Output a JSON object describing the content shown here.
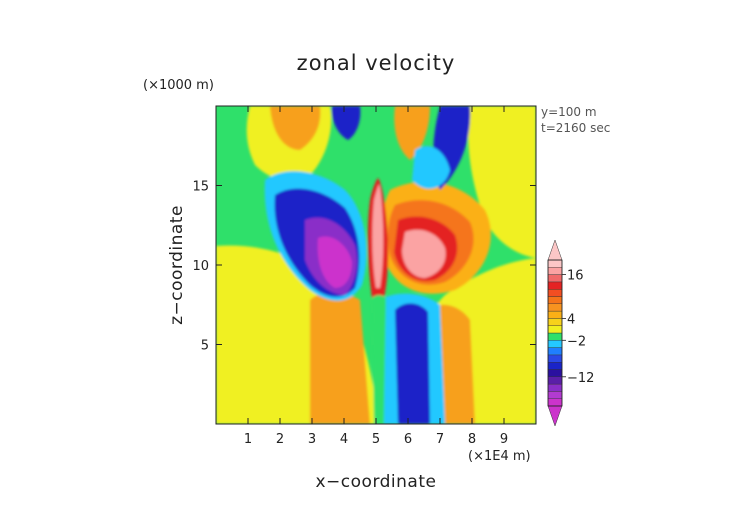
{
  "chart_data": {
    "type": "heatmap",
    "title": "zonal velocity",
    "xlabel": "x−coordinate",
    "ylabel": "z−coordinate",
    "x_unit": "(×1E4 m)",
    "y_unit": "(×1000 m)",
    "annotations": [
      "y=100 m",
      "t=2160 sec"
    ],
    "xlim": [
      0,
      10
    ],
    "ylim": [
      0,
      20
    ],
    "x_ticks": [
      "1",
      "2",
      "3",
      "4",
      "5",
      "6",
      "7",
      "8",
      "9"
    ],
    "x_tick_values": [
      1,
      2,
      3,
      4,
      5,
      6,
      7,
      8,
      9
    ],
    "y_ticks": [
      "5",
      "10",
      "15"
    ],
    "y_tick_values": [
      5,
      10,
      15
    ],
    "colorbar": {
      "labels": [
        "16",
        "4",
        "−2",
        "−12"
      ],
      "label_values": [
        16,
        4,
        -2,
        -12
      ],
      "levels": [
        -20,
        -18,
        -16,
        -14,
        -12,
        -10,
        -8,
        -6,
        -4,
        -2,
        0,
        2,
        4,
        6,
        8,
        10,
        12,
        14,
        16,
        18,
        20
      ],
      "colors": [
        "#cc33cc",
        "#b23bd0",
        "#8a2fc8",
        "#5a1fa8",
        "#2a10a0",
        "#1a24c8",
        "#2a48e6",
        "#1f7fff",
        "#24c8ff",
        "#2fe06a",
        "#f0f020",
        "#f7d21b",
        "#fbb016",
        "#f79320",
        "#f5741a",
        "#f34e22",
        "#e42323",
        "#f06a6a",
        "#fba3a3",
        "#fcc7c7"
      ]
    }
  }
}
